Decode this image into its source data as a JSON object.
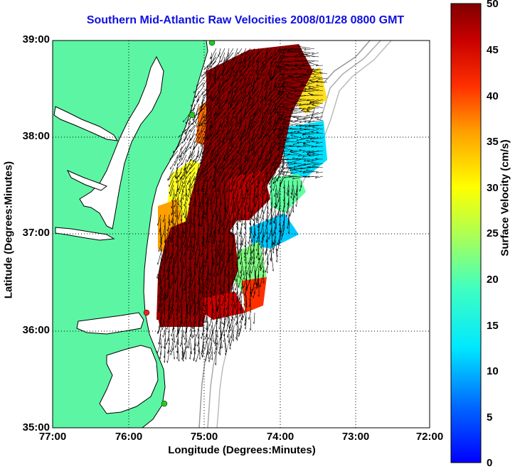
{
  "title": "Southern Mid-Atlantic Raw Velocities 2008/01/28 0800 GMT",
  "y_axis": {
    "label": "Latitude (Degrees:Minutes)",
    "ticks": [
      "39:00",
      "38:00",
      "37:00",
      "36:00",
      "35:00"
    ]
  },
  "x_axis": {
    "label": "Longitude (Degrees:Minutes)",
    "ticks": [
      "77:00",
      "76:00",
      "75:00",
      "74:00",
      "73:00",
      "72:00"
    ]
  },
  "colorbar": {
    "label": "Surface Velocity (cm/s)",
    "ticks": [
      "50",
      "45",
      "40",
      "35",
      "30",
      "25",
      "20",
      "15",
      "10",
      "5",
      "0"
    ]
  },
  "map": {
    "land_color": "#5cf5a4",
    "water_color": "#ffffff",
    "site_marker_color": "#22cc22",
    "site_marker_alt_color": "#ee2222"
  }
}
